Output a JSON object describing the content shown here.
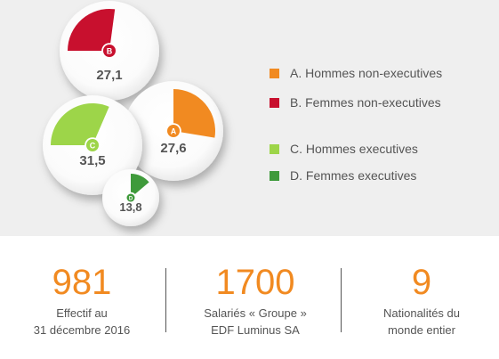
{
  "chart_data": {
    "type": "bubble",
    "max_value": 100,
    "series": [
      {
        "id": "B",
        "name": "B. Femmes non-executives",
        "value": 27.1,
        "label": "27,1",
        "color": "#c8102e"
      },
      {
        "id": "A",
        "name": "A. Hommes non-executives",
        "value": 27.6,
        "label": "27,6",
        "color": "#f18a21"
      },
      {
        "id": "C",
        "name": "C. Hommes executives",
        "value": 31.5,
        "label": "31,5",
        "color": "#9dd549"
      },
      {
        "id": "D",
        "name": "D. Femmes executives",
        "value": 13.8,
        "label": "13,8",
        "color": "#3f9a3b"
      }
    ]
  },
  "legend": {
    "items": [
      {
        "label": "A. Hommes non-executives",
        "color": "#f18a21"
      },
      {
        "label": "B. Femmes non-executives",
        "color": "#c8102e"
      },
      {
        "label": "C. Hommes executives",
        "color": "#9dd549"
      },
      {
        "label": "D. Femmes executives",
        "color": "#3f9a3b"
      }
    ]
  },
  "stats": [
    {
      "value": "981",
      "caption_line1": "Effectif au",
      "caption_line2": "31 décembre 2016"
    },
    {
      "value": "1700",
      "caption_line1": "Salariés « Groupe »",
      "caption_line2": "EDF Luminus SA"
    },
    {
      "value": "9",
      "caption_line1": "Nationalités du",
      "caption_line2": "monde entier"
    }
  ]
}
